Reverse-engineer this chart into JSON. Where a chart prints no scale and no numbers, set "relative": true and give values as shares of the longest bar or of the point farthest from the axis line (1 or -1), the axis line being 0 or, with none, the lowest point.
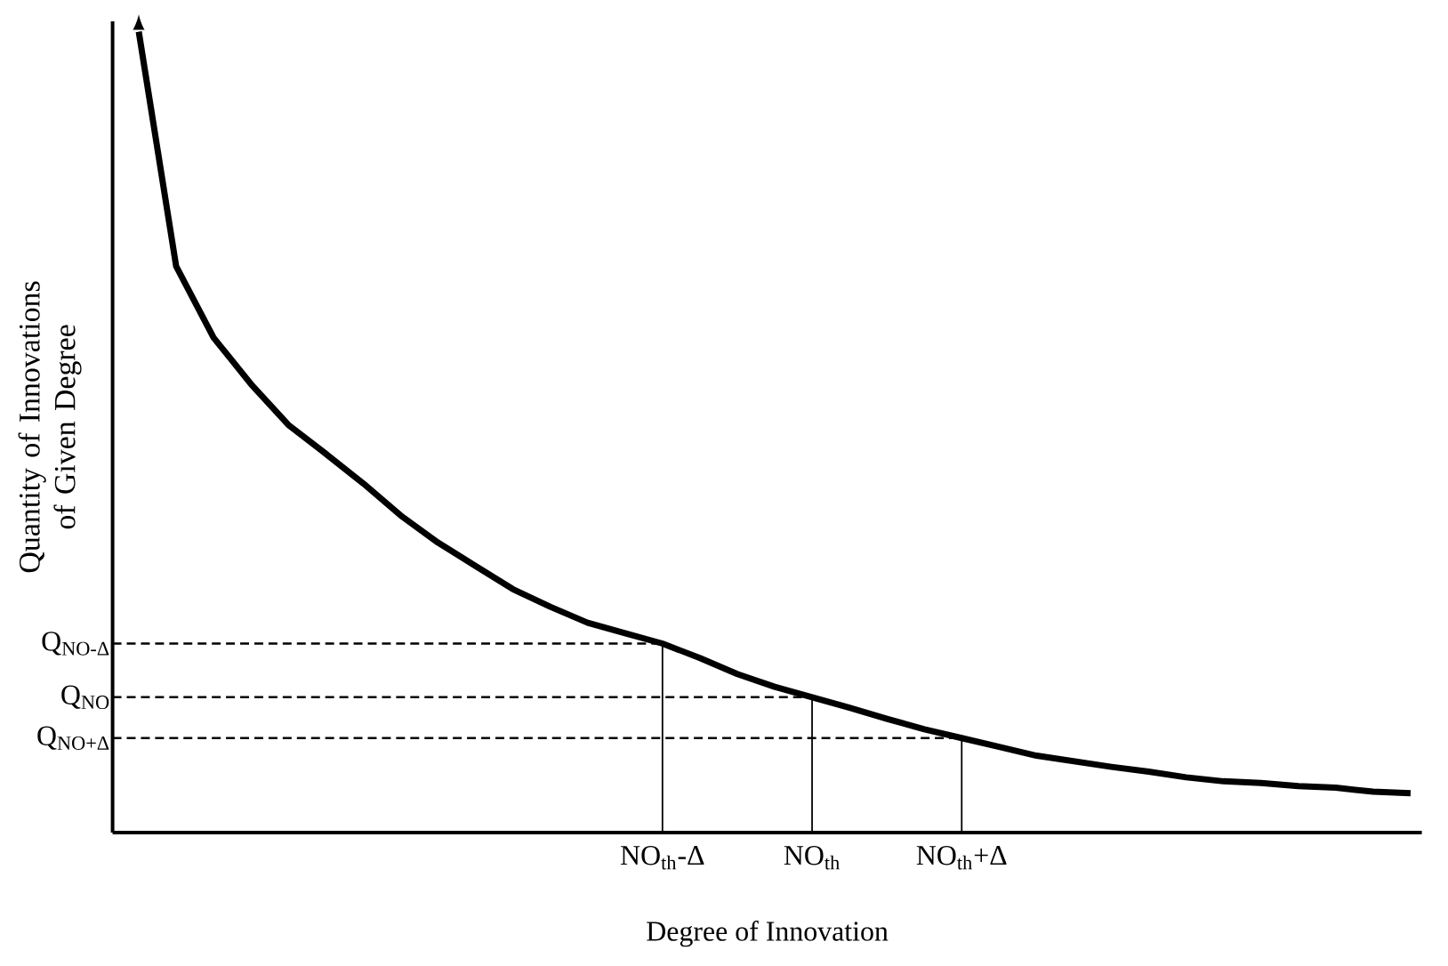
{
  "chart_data": {
    "type": "line",
    "relative": true,
    "xlabel": "Degree of Innovation",
    "ylabel": "Quantity of Innovations of Given Degree",
    "line_style": "solid",
    "categories": [
      null,
      null,
      null,
      null,
      null,
      null,
      null,
      null,
      null,
      null,
      null,
      null,
      null,
      null,
      "NO$_{th}$-Δ",
      null,
      null,
      null,
      "NO$_{th}$",
      null,
      null,
      null,
      "NO$_{th}$+Δ",
      null,
      null,
      null,
      null,
      null,
      null,
      null,
      null,
      null,
      null,
      null,
      null
    ],
    "series": [
      {
        "color": "#000000",
        "values": [
          1.0,
          0.707,
          0.618,
          0.56,
          0.509,
          0.473,
          0.436,
          0.396,
          0.362,
          0.333,
          0.304,
          0.282,
          0.262,
          0.249,
          0.236,
          0.218,
          0.198,
          0.182,
          0.169,
          0.156,
          0.142,
          0.129,
          0.118,
          0.107,
          0.096,
          0.089,
          0.082,
          0.076,
          0.069,
          0.064,
          0.062,
          0.058,
          0.056,
          0.051,
          0.049
        ]
      }
    ],
    "ref_lines": [
      {
        "axis": "y",
        "value": 0.236,
        "label": "Q$_{NO-Δ}$",
        "line_style": "dashed"
      },
      {
        "axis": "y",
        "value": 0.169,
        "label": "Q$_{NO}$",
        "line_style": "dashed"
      },
      {
        "axis": "y",
        "value": 0.118,
        "label": "Q$_{NO+Δ}$",
        "line_style": "dashed"
      },
      {
        "axis": "x",
        "value": "NO$_{th}$-Δ",
        "line_style": "solid"
      },
      {
        "axis": "x",
        "value": "NO$_{th}$",
        "line_style": "solid"
      },
      {
        "axis": "x",
        "value": "NO$_{th}$+Δ",
        "line_style": "solid"
      }
    ]
  }
}
